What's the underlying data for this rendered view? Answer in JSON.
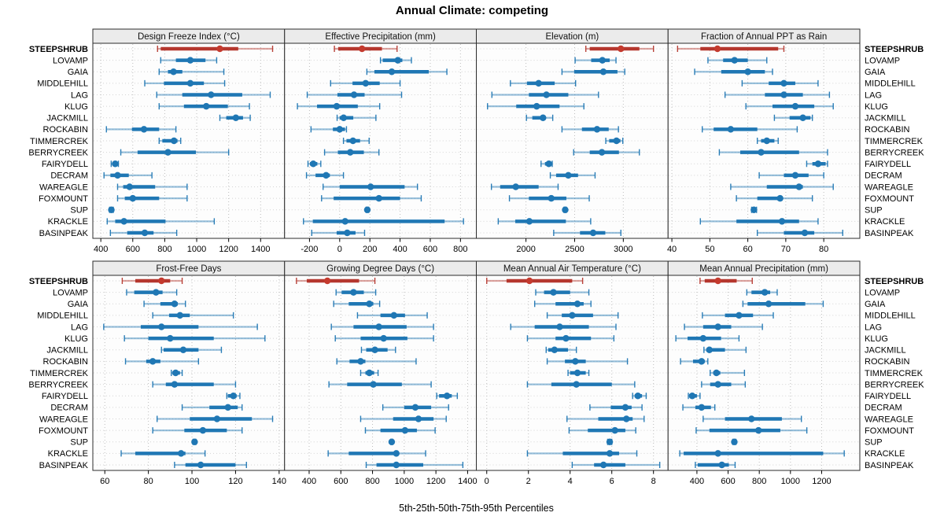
{
  "title": "Annual Climate: competing",
  "footer": "5th-25th-50th-75th-95th Percentiles",
  "colors": {
    "normal": "#1f77b4",
    "highlight_bar": "#b5372e",
    "highlight_dot": "#c43a2e",
    "panel_header_bg": "#ebebeb",
    "panel_border": "#2b2b2b",
    "grid_vertical": "#bdbdbd",
    "grid_horizontal": "#d4d4d4"
  },
  "chart_data": {
    "type": "dotplot-percentiles",
    "percentiles": [
      "5th",
      "25th",
      "50th",
      "75th",
      "95th"
    ],
    "legend_position": "none",
    "grid": true,
    "categories": [
      "STEEPSHRUB",
      "LOVAMP",
      "GAIA",
      "MIDDLEHILL",
      "LAG",
      "KLUG",
      "JACKMILL",
      "ROCKABIN",
      "TIMMERCREK",
      "BERRYCREEK",
      "FAIRYDELL",
      "DECRAM",
      "WAREAGLE",
      "FOXMOUNT",
      "SUP",
      "KRACKLE",
      "BASINPEAK"
    ],
    "highlighted_category": "STEEPSHRUB",
    "panels": [
      {
        "title": "Design Freeze Index (°C)",
        "row": 0,
        "col": 0,
        "xlim": [
          350,
          1550
        ],
        "ticks": [
          400,
          600,
          800,
          1000,
          1200,
          1400
        ],
        "values": [
          [
            755,
            775,
            1145,
            1260,
            1475
          ],
          [
            775,
            870,
            960,
            1055,
            1125
          ],
          [
            765,
            820,
            855,
            910,
            1170
          ],
          [
            675,
            795,
            960,
            1045,
            1175
          ],
          [
            750,
            910,
            1090,
            1285,
            1460
          ],
          [
            765,
            920,
            1060,
            1195,
            1330
          ],
          [
            1145,
            1185,
            1245,
            1290,
            1335
          ],
          [
            435,
            595,
            670,
            765,
            870
          ],
          [
            765,
            785,
            858,
            880,
            900
          ],
          [
            525,
            630,
            820,
            995,
            1200
          ],
          [
            465,
            475,
            490,
            500,
            510
          ],
          [
            420,
            460,
            505,
            575,
            720
          ],
          [
            505,
            540,
            580,
            740,
            940
          ],
          [
            505,
            550,
            600,
            765,
            940
          ],
          [
            455,
            462,
            466,
            471,
            478
          ],
          [
            440,
            490,
            545,
            805,
            1110
          ],
          [
            460,
            565,
            675,
            730,
            875
          ]
        ]
      },
      {
        "title": "Effective Precipitation (mm)",
        "row": 0,
        "col": 1,
        "xlim": [
          -365,
          905
        ],
        "ticks": [
          -200,
          0,
          200,
          400,
          600,
          800
        ],
        "values": [
          [
            -35,
            -10,
            148,
            280,
            380
          ],
          [
            270,
            285,
            385,
            415,
            475
          ],
          [
            180,
            230,
            345,
            590,
            710
          ],
          [
            -60,
            85,
            172,
            265,
            400
          ],
          [
            -215,
            -15,
            95,
            165,
            410
          ],
          [
            -280,
            -150,
            -20,
            120,
            265
          ],
          [
            -17,
            0,
            26,
            90,
            240
          ],
          [
            -190,
            -45,
            0,
            35,
            45
          ],
          [
            25,
            45,
            88,
            135,
            195
          ],
          [
            -100,
            -12,
            70,
            160,
            260
          ],
          [
            -210,
            -197,
            -175,
            -148,
            -125
          ],
          [
            -220,
            -160,
            -90,
            -65,
            25
          ],
          [
            -110,
            0,
            205,
            430,
            515
          ],
          [
            -120,
            -40,
            260,
            400,
            540
          ],
          [
            175,
            180,
            183,
            187,
            192
          ],
          [
            -240,
            -178,
            36,
            695,
            820
          ],
          [
            -185,
            -20,
            50,
            105,
            165
          ]
        ]
      },
      {
        "title": "Elevation (m)",
        "row": 0,
        "col": 2,
        "xlim": [
          1490,
          3460
        ],
        "ticks": [
          2000,
          2500,
          3000
        ],
        "values": [
          [
            2615,
            2655,
            2975,
            3165,
            3310
          ],
          [
            2505,
            2670,
            2785,
            2860,
            2925
          ],
          [
            2370,
            2495,
            2795,
            2940,
            3015
          ],
          [
            1840,
            2010,
            2130,
            2295,
            2510
          ],
          [
            1650,
            2030,
            2210,
            2435,
            2745
          ],
          [
            1605,
            1900,
            2110,
            2345,
            2595
          ],
          [
            2005,
            2065,
            2175,
            2205,
            2275
          ],
          [
            2370,
            2575,
            2730,
            2850,
            2950
          ],
          [
            2820,
            2855,
            2930,
            2970,
            2995
          ],
          [
            2490,
            2655,
            2780,
            2955,
            3165
          ],
          [
            2155,
            2195,
            2235,
            2255,
            2270
          ],
          [
            2250,
            2310,
            2435,
            2535,
            2710
          ],
          [
            1645,
            1735,
            1895,
            2130,
            2330
          ],
          [
            1830,
            2030,
            2260,
            2415,
            2650
          ],
          [
            2390,
            2398,
            2403,
            2408,
            2415
          ],
          [
            1715,
            1890,
            2035,
            2410,
            2665
          ],
          [
            2285,
            2555,
            2690,
            2815,
            2975
          ]
        ]
      },
      {
        "title": "Fraction of Annual PPT as Rain",
        "row": 0,
        "col": 3,
        "xlim": [
          39,
          89.5
        ],
        "ticks": [
          40,
          50,
          60,
          70,
          80
        ],
        "values": [
          [
            41.5,
            47.5,
            52,
            68,
            69.5
          ],
          [
            49.5,
            53.5,
            56.5,
            60,
            65
          ],
          [
            46,
            53,
            60,
            64.5,
            66.5
          ],
          [
            58.5,
            65.5,
            69.5,
            72.5,
            78.5
          ],
          [
            54,
            64.5,
            69.5,
            74.5,
            81.5
          ],
          [
            59.5,
            66.5,
            72.5,
            77.5,
            82.5
          ],
          [
            67,
            71,
            74.5,
            76.5,
            77
          ],
          [
            48,
            51,
            55.5,
            62.5,
            73
          ],
          [
            62.5,
            63.5,
            65,
            67,
            68
          ],
          [
            52.5,
            58,
            63.5,
            73.5,
            81
          ],
          [
            75.5,
            77,
            78.5,
            80.5,
            81
          ],
          [
            63,
            69.5,
            72.5,
            76,
            80
          ],
          [
            55.5,
            65,
            73.5,
            74.5,
            82.5
          ],
          [
            57,
            62.5,
            68.5,
            69,
            77
          ],
          [
            61,
            61.3,
            61.6,
            62,
            62.3
          ],
          [
            47.5,
            57,
            69,
            73.5,
            78.5
          ],
          [
            62.5,
            69.5,
            75,
            77.5,
            85
          ]
        ]
      },
      {
        "title": "Frost-Free Days",
        "row": 1,
        "col": 0,
        "xlim": [
          54.5,
          142.5
        ],
        "ticks": [
          60,
          80,
          100,
          120,
          140
        ],
        "values": [
          [
            68,
            74,
            86,
            90,
            95.5
          ],
          [
            70,
            73.5,
            83.5,
            86.5,
            93
          ],
          [
            78,
            85.5,
            92,
            93.5,
            97
          ],
          [
            82,
            89.5,
            94.5,
            99,
            119
          ],
          [
            59.5,
            76.5,
            86,
            103,
            130
          ],
          [
            69,
            80,
            90,
            110,
            133.5
          ],
          [
            86,
            87,
            96,
            103,
            113.5
          ],
          [
            69.5,
            79,
            82,
            85.5,
            103
          ],
          [
            90.5,
            91,
            92.5,
            94.5,
            95.5
          ],
          [
            82,
            88,
            92,
            110,
            120
          ],
          [
            116,
            116.5,
            119,
            120.5,
            122
          ],
          [
            95.5,
            108,
            116.5,
            121,
            123
          ],
          [
            84,
            99,
            111.5,
            127.5,
            137
          ],
          [
            82,
            96.5,
            105,
            116,
            123
          ],
          [
            100.5,
            100.8,
            101.2,
            101.5,
            101.8
          ],
          [
            67.5,
            74,
            95,
            97,
            106
          ],
          [
            92,
            97,
            104,
            120,
            125
          ]
        ]
      },
      {
        "title": "Growing Degree Days (°C)",
        "row": 1,
        "col": 1,
        "xlim": [
          245,
          1455
        ],
        "ticks": [
          400,
          600,
          800,
          1000,
          1200,
          1400
        ],
        "values": [
          [
            320,
            385,
            515,
            715,
            815
          ],
          [
            570,
            605,
            680,
            745,
            820
          ],
          [
            555,
            650,
            780,
            805,
            845
          ],
          [
            705,
            850,
            935,
            1005,
            1145
          ],
          [
            540,
            680,
            840,
            1015,
            1185
          ],
          [
            565,
            725,
            870,
            1020,
            1185
          ],
          [
            730,
            760,
            815,
            895,
            945
          ],
          [
            575,
            655,
            725,
            755,
            1075
          ],
          [
            725,
            755,
            780,
            810,
            835
          ],
          [
            525,
            640,
            805,
            985,
            1170
          ],
          [
            1205,
            1220,
            1270,
            1300,
            1335
          ],
          [
            865,
            1000,
            1070,
            1170,
            1280
          ],
          [
            725,
            930,
            1090,
            1185,
            1265
          ],
          [
            755,
            850,
            1005,
            1080,
            1195
          ],
          [
            915,
            918,
            921,
            924,
            927
          ],
          [
            520,
            650,
            950,
            957,
            1135
          ],
          [
            760,
            825,
            950,
            1120,
            1370
          ]
        ]
      },
      {
        "title": "Mean Annual Air Temperature (°C)",
        "row": 1,
        "col": 2,
        "xlim": [
          -0.5,
          8.7
        ],
        "ticks": [
          0,
          2,
          4,
          6,
          8
        ],
        "values": [
          [
            0,
            0.95,
            2.05,
            4.1,
            4.6
          ],
          [
            2.35,
            2.75,
            3.2,
            4,
            4.9
          ],
          [
            2.3,
            3.3,
            4.35,
            4.65,
            5
          ],
          [
            2.9,
            3.6,
            4.1,
            5.1,
            6.3
          ],
          [
            1.15,
            2.3,
            3.5,
            4.9,
            6.2
          ],
          [
            1.95,
            3.3,
            3.8,
            5,
            6.1
          ],
          [
            2.85,
            2.95,
            3.25,
            3.9,
            4.3
          ],
          [
            2.9,
            3.75,
            4.25,
            4.75,
            6.75
          ],
          [
            3.9,
            4,
            4.35,
            4.75,
            4.9
          ],
          [
            1.95,
            3.1,
            4.3,
            6,
            7.1
          ],
          [
            7,
            7.1,
            7.25,
            7.45,
            7.65
          ],
          [
            4.95,
            5.95,
            6.65,
            6.95,
            7.45
          ],
          [
            3.85,
            5.35,
            6.7,
            7,
            7.55
          ],
          [
            3.95,
            4.85,
            6.15,
            6.65,
            7.15
          ],
          [
            5.8,
            5.85,
            5.9,
            5.95,
            6
          ],
          [
            1.95,
            3.65,
            5.9,
            6.35,
            7.2
          ],
          [
            4.1,
            5.15,
            5.6,
            6.65,
            8.3
          ]
        ]
      },
      {
        "title": "Mean Annual Precipitation (mm)",
        "row": 1,
        "col": 3,
        "xlim": [
          215,
          1445
        ],
        "ticks": [
          400,
          600,
          800,
          1000,
          1200
        ],
        "values": [
          [
            420,
            450,
            535,
            655,
            755
          ],
          [
            720,
            750,
            835,
            870,
            915
          ],
          [
            695,
            725,
            860,
            1095,
            1210
          ],
          [
            435,
            580,
            670,
            760,
            890
          ],
          [
            320,
            440,
            535,
            620,
            820
          ],
          [
            265,
            340,
            440,
            555,
            670
          ],
          [
            445,
            460,
            480,
            580,
            715
          ],
          [
            295,
            375,
            430,
            450,
            470
          ],
          [
            485,
            505,
            525,
            550,
            705
          ],
          [
            430,
            485,
            535,
            620,
            710
          ],
          [
            345,
            350,
            370,
            400,
            420
          ],
          [
            310,
            390,
            430,
            490,
            515
          ],
          [
            440,
            580,
            750,
            945,
            1070
          ],
          [
            395,
            480,
            795,
            935,
            1105
          ],
          [
            630,
            635,
            640,
            645,
            650
          ],
          [
            290,
            315,
            535,
            1210,
            1345
          ],
          [
            390,
            405,
            560,
            605,
            645
          ]
        ]
      }
    ]
  }
}
